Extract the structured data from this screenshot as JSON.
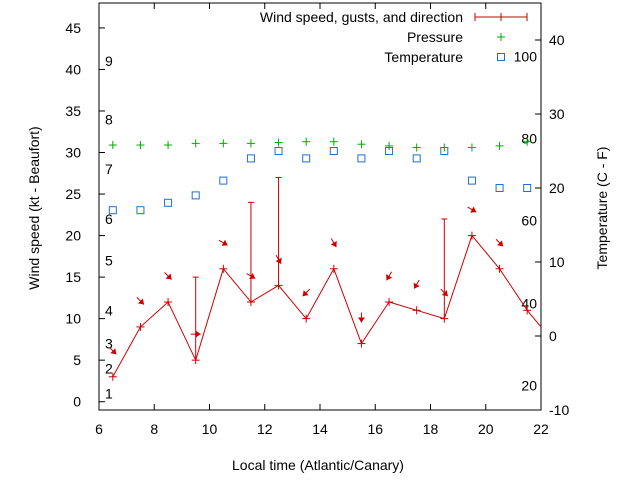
{
  "chart_data": {
    "type": "line",
    "xlabel": "Local time (Atlantic/Canary)",
    "ylabel_left": "Wind speed (kt - Beaufort)",
    "ylabel_right": "Temperature (C - F)",
    "xlim": [
      6,
      22
    ],
    "ylim_left": [
      -1,
      48
    ],
    "ylim_right": [
      -10,
      45
    ],
    "x_ticks": [
      6,
      8,
      10,
      12,
      14,
      16,
      18,
      20,
      22
    ],
    "y_ticks_left": [
      0,
      5,
      10,
      15,
      20,
      25,
      30,
      35,
      40,
      45
    ],
    "y_ticks_right": [
      -10,
      0,
      10,
      20,
      30,
      40
    ],
    "beaufort_labels": [
      {
        "label": "1",
        "kt": 1
      },
      {
        "label": "2",
        "kt": 4
      },
      {
        "label": "3",
        "kt": 7
      },
      {
        "label": "4",
        "kt": 11
      },
      {
        "label": "5",
        "kt": 17
      },
      {
        "label": "6",
        "kt": 22
      },
      {
        "label": "7",
        "kt": 28
      },
      {
        "label": "8",
        "kt": 34
      },
      {
        "label": "9",
        "kt": 41
      }
    ],
    "fahrenheit_labels": [
      {
        "label": "20",
        "c": -6.7
      },
      {
        "label": "40",
        "c": 4.4
      },
      {
        "label": "60",
        "c": 15.6
      },
      {
        "label": "80",
        "c": 26.7
      },
      {
        "label": "100",
        "c": 37.8
      }
    ],
    "legend": {
      "position": "top-right",
      "entries": [
        "Wind speed, gusts, and direction",
        "Pressure",
        "Temperature"
      ]
    },
    "series": [
      {
        "name": "Wind speed, gusts, and direction",
        "color": "#cc0000",
        "points": [
          {
            "x": 6.5,
            "speed": 3,
            "gust": null,
            "dir": 315
          },
          {
            "x": 7.5,
            "speed": 9,
            "gust": null,
            "dir": 315
          },
          {
            "x": 8.5,
            "speed": 12,
            "gust": null,
            "dir": 315
          },
          {
            "x": 9.5,
            "speed": 5,
            "gust": 15,
            "dir": 270
          },
          {
            "x": 10.5,
            "speed": 16,
            "gust": null,
            "dir": 300
          },
          {
            "x": 11.5,
            "speed": 12,
            "gust": 24,
            "dir": 300
          },
          {
            "x": 12.5,
            "speed": 14,
            "gust": 27,
            "dir": 330
          },
          {
            "x": 13.5,
            "speed": 10,
            "gust": null,
            "dir": 45
          },
          {
            "x": 14.5,
            "speed": 16,
            "gust": null,
            "dir": 330
          },
          {
            "x": 15.5,
            "speed": 7,
            "gust": null,
            "dir": 360
          },
          {
            "x": 16.5,
            "speed": 12,
            "gust": null,
            "dir": 30
          },
          {
            "x": 17.5,
            "speed": 11,
            "gust": null,
            "dir": 30
          },
          {
            "x": 18.5,
            "speed": 10,
            "gust": 22,
            "dir": 315
          },
          {
            "x": 19.5,
            "speed": 20,
            "gust": null,
            "dir": 300
          },
          {
            "x": 20.5,
            "speed": 16,
            "gust": null,
            "dir": 315
          },
          {
            "x": 21.5,
            "speed": 11,
            "gust": null,
            "dir": null
          },
          {
            "x": 22,
            "speed": 9,
            "gust": null,
            "dir": null
          }
        ]
      },
      {
        "name": "Pressure",
        "color": "#00aa00",
        "axis": "left",
        "points": [
          {
            "x": 6.5,
            "y": 30.9
          },
          {
            "x": 7.5,
            "y": 30.9
          },
          {
            "x": 8.5,
            "y": 30.9
          },
          {
            "x": 9.5,
            "y": 31.1
          },
          {
            "x": 10.5,
            "y": 31.1
          },
          {
            "x": 11.5,
            "y": 31.1
          },
          {
            "x": 12.5,
            "y": 31.2
          },
          {
            "x": 13.5,
            "y": 31.3
          },
          {
            "x": 14.5,
            "y": 31.3
          },
          {
            "x": 15.5,
            "y": 31.0
          },
          {
            "x": 16.5,
            "y": 30.8
          },
          {
            "x": 17.5,
            "y": 30.6
          },
          {
            "x": 18.5,
            "y": 30.6
          },
          {
            "x": 19.5,
            "y": 30.6
          },
          {
            "x": 20.5,
            "y": 30.8
          },
          {
            "x": 21.5,
            "y": 31.3
          }
        ]
      },
      {
        "name": "Temperature",
        "color": "#1f6fd0",
        "axis": "right",
        "points": [
          {
            "x": 6.5,
            "y": 17
          },
          {
            "x": 7.5,
            "y": 17
          },
          {
            "x": 8.5,
            "y": 18
          },
          {
            "x": 9.5,
            "y": 19
          },
          {
            "x": 10.5,
            "y": 21
          },
          {
            "x": 11.5,
            "y": 24
          },
          {
            "x": 12.5,
            "y": 25
          },
          {
            "x": 13.5,
            "y": 24
          },
          {
            "x": 14.5,
            "y": 25
          },
          {
            "x": 15.5,
            "y": 24
          },
          {
            "x": 16.5,
            "y": 25
          },
          {
            "x": 17.5,
            "y": 24
          },
          {
            "x": 18.5,
            "y": 25
          },
          {
            "x": 19.5,
            "y": 21
          },
          {
            "x": 20.5,
            "y": 20
          },
          {
            "x": 21.5,
            "y": 20
          }
        ]
      }
    ]
  }
}
